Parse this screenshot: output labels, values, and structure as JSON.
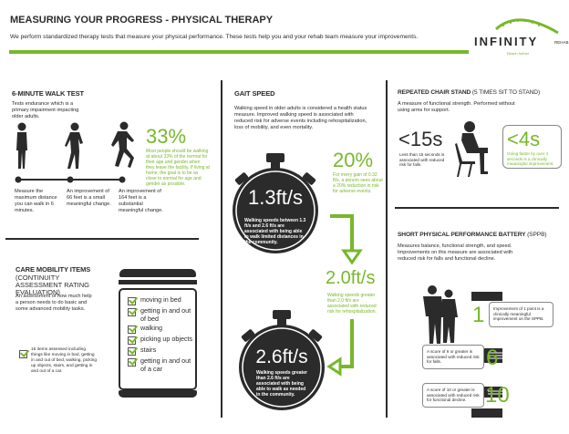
{
  "header": {
    "title": "MEASURING YOUR PROGRESS  -  PHYSICAL THERAPY",
    "subtitle": "We perform standardized therapy tests that measure your physical performance. These tests help you and your rehab team measure your improvements.",
    "accent": "#77b82a"
  },
  "logo": {
    "name": "INFINITY",
    "sub": "REHAB",
    "tagline": "Reach further"
  },
  "walk_test": {
    "title": "6-MINUTE WALK TEST",
    "desc": "Tests endurance which is a primary impairment impacting older adults.",
    "stat": "33%",
    "stat_text": "Most people should be walking at about 33% of the normal for their age and gender when they leave the facility. If living at home, the goal is to be as close to normal for age and gender as possible.",
    "steps": [
      "Measure the maximum distance you can walk in 6 minutes.",
      "An improvement of 66 feet is a small meaningful change.",
      "An improvement of 164 feet is a substantial meaningful change."
    ]
  },
  "gait": {
    "title": "GAIT SPEED",
    "desc": "Walking speed in older adults is considered a health status measure. Improved walking speed is associated with reduced risk for adverse events including rehospitalization, loss of mobility, and even mortality.",
    "stat": "20%",
    "stat_text": "For every gain of 0.32 ft/s, a person sees about a 20% reduction in risk for adverse events.",
    "speed1": "1.3ft/s",
    "speed1_text": "Walking speeds between 1.3 ft/s and 2.6 ft/s are associated with being able to walk limited distances in the community.",
    "speed2": "2.0ft/s",
    "speed2_text": "Walking speeds greater than 2.0 ft/s are associated with reduced risk for rehospitalization.",
    "speed3": "2.6ft/s",
    "speed3_text": "Walking speeds greater than 2.6 ft/s are associated with being able to walk as needed in the community."
  },
  "chair": {
    "title": "REPEATED CHAIR STAND",
    "title_extra": "(5 TIMES SIT TO STAND)",
    "desc": "A measure of functional strength. Performed without using arms for support.",
    "stat1": "<15s",
    "stat1_text": "Less than 15 seconds is associated with reduced risk for falls.",
    "stat2": "<4s",
    "stat2_text": "Going faster by over 4 seconds is a clinically meaningful improvement."
  },
  "sppb": {
    "title": "SHORT PHYSICAL PERFORMANCE BATTERY",
    "title_extra": "(SPPB)",
    "desc": "Measures balance, functional strength, and speed. Improvements on this measure are associated with reduced risk for falls and functional decline.",
    "scores": [
      {
        "value": "1",
        "text": "Improvement of 1 point is a clinically meaningful improvement on the SPPB."
      },
      {
        "value": "6",
        "text": "A score of 6 or greater is associated with reduced risk for falls."
      },
      {
        "value": "10",
        "text": "A score of 10 or greater is associated with reduced risk for functional decline."
      }
    ]
  },
  "care": {
    "title": "CARE MOBILITY ITEMS",
    "title2": "(CONTINUITY ASSESSMENT RATING EVALUATION)",
    "desc": "An assessment of how much help a person needs to do basic and some advanced mobility tasks.",
    "note": "15 items assessed including things like moving in bed, getting in and out of bed, walking, picking up objects, stairs, and getting in and out of a car.",
    "items": [
      "moving in bed",
      "getting in and out of bed",
      "walking",
      "picking up objects",
      "stairs",
      "getting in and out of a car"
    ]
  }
}
